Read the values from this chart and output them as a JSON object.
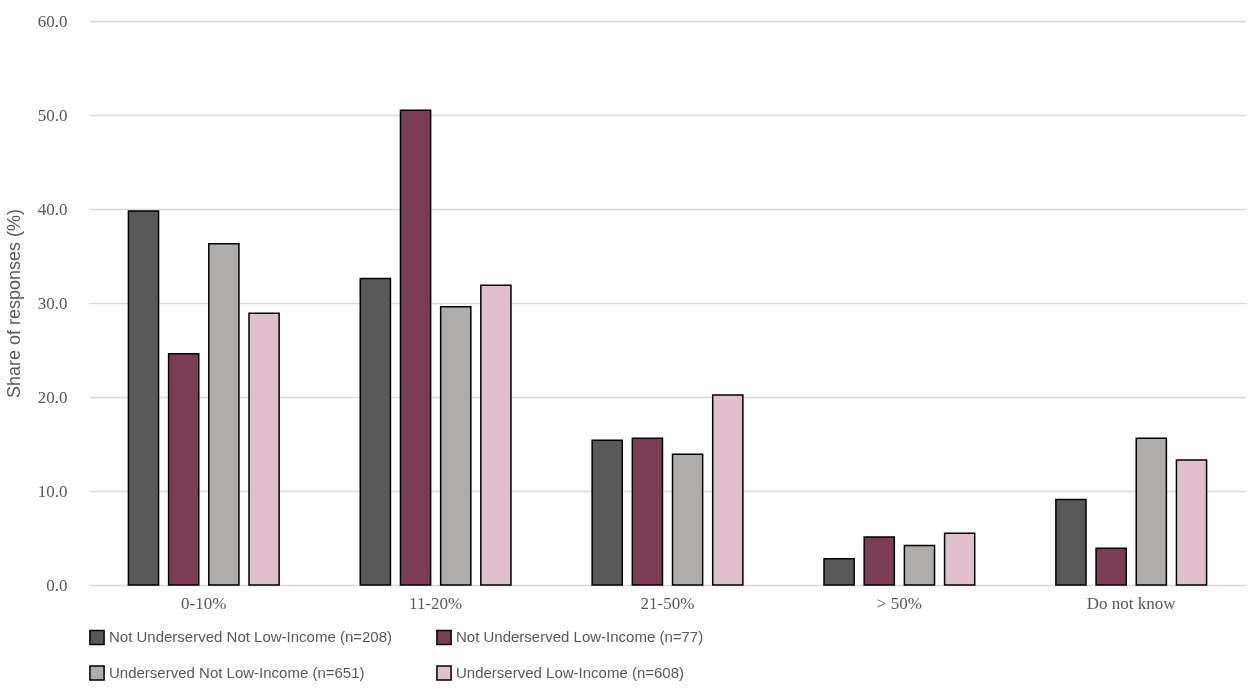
{
  "chart_data": {
    "type": "bar",
    "ylabel": "Share of responses (%)",
    "categories": [
      "0-10%",
      "11-20%",
      "21-50%",
      "> 50%",
      "Do not know"
    ],
    "series": [
      {
        "name": "Not Underserved Not Low-Income (n=208)",
        "color": "#595959",
        "values": [
          39.8,
          32.6,
          15.4,
          2.8,
          9.1
        ]
      },
      {
        "name": "Not Underserved Low-Income (n=77)",
        "color": "#7a3d55",
        "values": [
          24.6,
          50.5,
          15.6,
          5.1,
          3.9
        ]
      },
      {
        "name": "Underserved Not Low-Income (n=651)",
        "color": "#aeadab",
        "values": [
          36.3,
          29.6,
          13.9,
          4.2,
          15.6
        ]
      },
      {
        "name": "Underserved Low-Income (n=608)",
        "color": "#e0c0cd",
        "values": [
          28.9,
          31.9,
          20.2,
          5.5,
          13.3
        ]
      }
    ],
    "ylim": [
      0,
      60
    ],
    "yticks": [
      {
        "value": 0,
        "label": "0.0"
      },
      {
        "value": 10,
        "label": "10.0"
      },
      {
        "value": 20,
        "label": "20.0"
      },
      {
        "value": 30,
        "label": "30.0"
      },
      {
        "value": 40,
        "label": "40.0"
      },
      {
        "value": 50,
        "label": "50.0"
      },
      {
        "value": 60,
        "label": "60.0"
      }
    ],
    "grid": "y",
    "legend": "bottom"
  }
}
